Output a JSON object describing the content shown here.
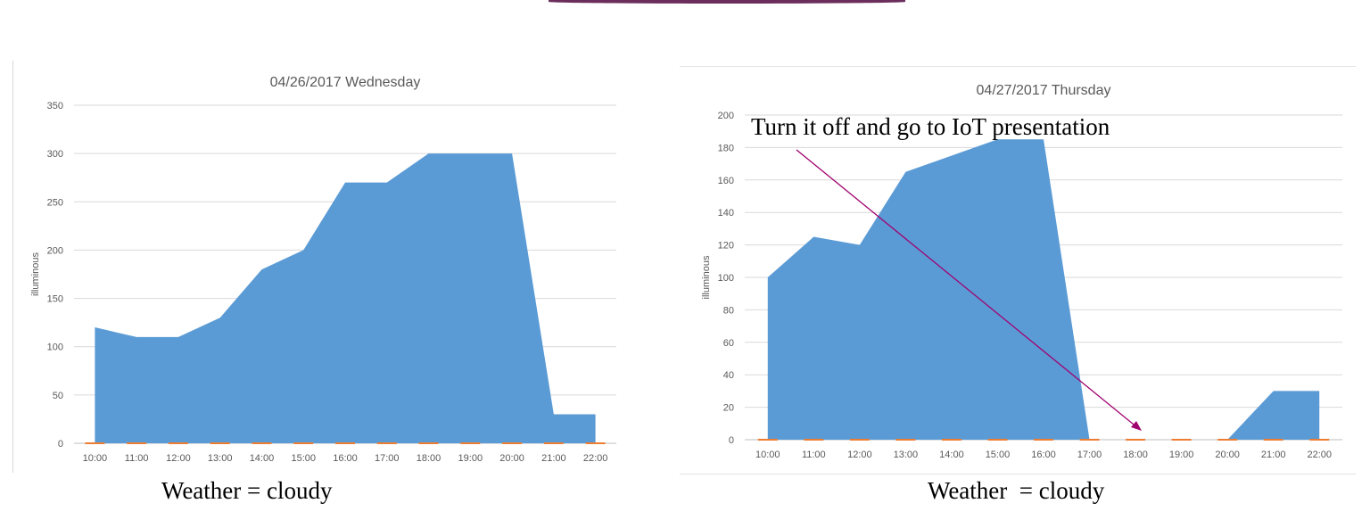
{
  "chart_data": [
    {
      "type": "area",
      "title": "04/26/2017 Wednesday",
      "xlabel": "",
      "ylabel": "illuminous",
      "ylim": [
        0,
        350
      ],
      "yticks": [
        "0",
        "50",
        "100",
        "150",
        "200",
        "250",
        "300",
        "350"
      ],
      "categories": [
        "10:00",
        "11:00",
        "12:00",
        "13:00",
        "14:00",
        "15:00",
        "16:00",
        "17:00",
        "18:00",
        "19:00",
        "20:00",
        "21:00",
        "22:00"
      ],
      "series": [
        {
          "color": "#5b9bd5",
          "values": [
            120,
            110,
            110,
            130,
            180,
            200,
            270,
            270,
            300,
            300,
            300,
            30,
            30
          ]
        },
        {
          "color": "#ed7d31",
          "values": [
            0,
            0,
            0,
            0,
            0,
            0,
            0,
            0,
            0,
            0,
            0,
            0,
            0
          ]
        }
      ],
      "grid": true
    },
    {
      "type": "area",
      "title": "04/27/2017 Thursday",
      "xlabel": "",
      "ylabel": "illuminous",
      "ylim": [
        0,
        200
      ],
      "yticks": [
        "0",
        "20",
        "40",
        "60",
        "80",
        "100",
        "120",
        "140",
        "160",
        "180",
        "200"
      ],
      "categories": [
        "10:00",
        "11:00",
        "12:00",
        "13:00",
        "14:00",
        "15:00",
        "16:00",
        "17:00",
        "18:00",
        "19:00",
        "20:00",
        "21:00",
        "22:00"
      ],
      "series": [
        {
          "color": "#5b9bd5",
          "values": [
            100,
            125,
            120,
            165,
            175,
            185,
            185,
            0,
            0,
            0,
            0,
            30,
            30
          ]
        },
        {
          "color": "#ed7d31",
          "values": [
            0,
            0,
            0,
            0,
            0,
            0,
            0,
            0,
            0,
            0,
            0,
            0,
            0
          ]
        }
      ],
      "grid": true
    }
  ],
  "captions": {
    "left": "Weather = cloudy",
    "right": "Weather  = cloudy"
  },
  "annotation": {
    "text": "Turn it off and go to IoT presentation",
    "arrow_color": "#a0006e"
  },
  "accent_color": "#6b2d5c"
}
